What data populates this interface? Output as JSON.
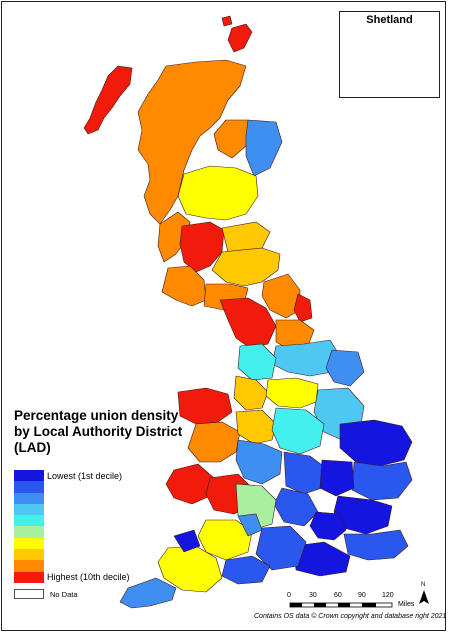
{
  "legend": {
    "title": "Percentage union density by Local Authority District (LAD)",
    "deciles": [
      {
        "label": "Lowest (1st decile)",
        "color": "#1515e0"
      },
      {
        "label": "",
        "color": "#2a58ee"
      },
      {
        "label": "",
        "color": "#3f8ef2"
      },
      {
        "label": "",
        "color": "#4ec7f2"
      },
      {
        "label": "",
        "color": "#44f0ee"
      },
      {
        "label": "",
        "color": "#a8f0a0"
      },
      {
        "label": "",
        "color": "#ffff00"
      },
      {
        "label": "",
        "color": "#ffc800"
      },
      {
        "label": "",
        "color": "#ff8a00"
      },
      {
        "label": "Highest (10th decile)",
        "color": "#f21a0a"
      }
    ],
    "no_data_label": "No Data"
  },
  "inset": {
    "title": "Shetland"
  },
  "scale_bar": {
    "ticks": [
      "0",
      "30",
      "60",
      "90",
      "120"
    ],
    "units": "Miles"
  },
  "north_label": "N",
  "credit": "Contains OS data © Crown copyright and database right 2021"
}
